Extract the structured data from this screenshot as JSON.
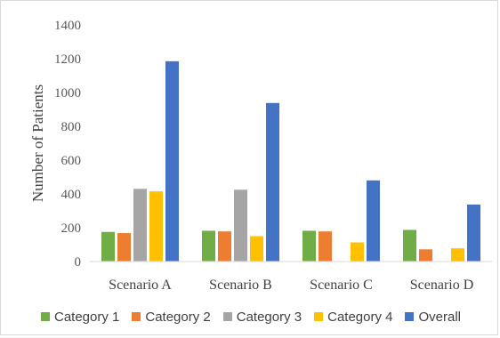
{
  "chart_data": {
    "type": "bar",
    "title": "",
    "xlabel": "",
    "ylabel": "Number of Patients",
    "ylim": [
      0,
      1400
    ],
    "yticks": [
      0,
      200,
      400,
      600,
      800,
      1000,
      1200,
      1400
    ],
    "grid": false,
    "legend_position": "bottom",
    "categories": [
      "Scenario A",
      "Scenario B",
      "Scenario C",
      "Scenario D"
    ],
    "series": [
      {
        "name": "Category 1",
        "color": "#70ad47",
        "values": [
          175,
          182,
          182,
          187
        ]
      },
      {
        "name": "Category 2",
        "color": "#ed7d31",
        "values": [
          168,
          178,
          178,
          72
        ]
      },
      {
        "name": "Category 3",
        "color": "#a5a5a5",
        "values": [
          430,
          425,
          0,
          0
        ]
      },
      {
        "name": "Category 4",
        "color": "#ffc000",
        "values": [
          415,
          150,
          113,
          78
        ]
      },
      {
        "name": "Overall",
        "color": "#4472c4",
        "values": [
          1185,
          938,
          480,
          337
        ]
      }
    ]
  }
}
